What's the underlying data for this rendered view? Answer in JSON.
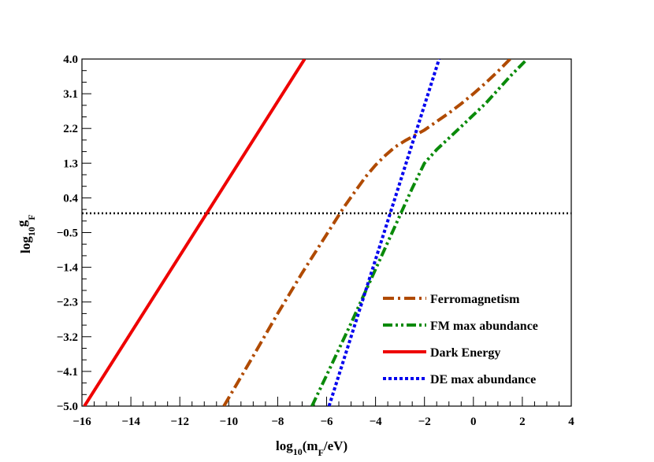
{
  "chart_data": {
    "type": "line",
    "xlim": [
      -16,
      4
    ],
    "ylim": [
      -5.0,
      4.0
    ],
    "x_ticks": [
      "−16",
      "−14",
      "−12",
      "−10",
      "−8",
      "−6",
      "−4",
      "−2",
      "0",
      "2",
      "4"
    ],
    "y_ticks": [
      "4.0",
      "3.1",
      "2.2",
      "1.3",
      "0.4",
      "−0.5",
      "−1.4",
      "−2.3",
      "−3.2",
      "−4.1",
      "−5.0"
    ],
    "x_tick_values": [
      -16,
      -14,
      -12,
      -10,
      -8,
      -6,
      -4,
      -2,
      0,
      2,
      4
    ],
    "y_tick_values": [
      4.0,
      3.1,
      2.2,
      1.3,
      0.4,
      -0.5,
      -1.4,
      -2.3,
      -3.2,
      -4.1,
      -5.0
    ],
    "xlabel": {
      "main1": "log",
      "sub": "10",
      "main2": "(m",
      "sub2": "F",
      "main3": "/eV)"
    },
    "ylabel": {
      "main1": "log",
      "sub": "10",
      "main2": "g",
      "sub2": "F"
    },
    "reference_line": {
      "y": 0.0,
      "style": "dotted",
      "color": "#000000"
    },
    "legend_position": "bottom-right",
    "grid": false,
    "series": [
      {
        "name": "Ferromagnetism",
        "color": "#b04a00",
        "dash": "dash-dot",
        "x": [
          -10.2,
          -9.0,
          -8.0,
          -7.0,
          -6.0,
          -5.3,
          -4.8,
          -4.4,
          -4.0,
          -3.6,
          -3.2,
          -2.8,
          -2.4,
          -2.0,
          -1.5,
          -1.0,
          -0.5,
          0.0,
          0.5,
          1.0,
          1.5
        ],
        "y": [
          -5.0,
          -3.7,
          -2.6,
          -1.55,
          -0.55,
          0.15,
          0.6,
          0.95,
          1.25,
          1.5,
          1.72,
          1.88,
          2.02,
          2.16,
          2.38,
          2.6,
          2.84,
          3.1,
          3.38,
          3.68,
          4.0
        ]
      },
      {
        "name": "FM max abundance",
        "color": "#0a8a0a",
        "dash": "dash-dot-dot",
        "x": [
          -6.6,
          -6.0,
          -5.0,
          -4.0,
          -3.0,
          -2.5,
          -2.0,
          -1.5,
          -1.0,
          -0.5,
          0.0,
          0.5,
          1.0,
          1.5,
          2.2
        ],
        "y": [
          -5.0,
          -4.2,
          -2.85,
          -1.45,
          -0.05,
          0.65,
          1.3,
          1.65,
          1.95,
          2.25,
          2.55,
          2.85,
          3.2,
          3.55,
          4.0
        ]
      },
      {
        "name": "Dark Energy",
        "color": "#ee0000",
        "dash": "solid",
        "x": [
          -15.9,
          -6.9
        ],
        "y": [
          -5.0,
          4.0
        ]
      },
      {
        "name": "DE max abundance",
        "color": "#0000ee",
        "dash": "dotted",
        "x": [
          -5.9,
          -1.4
        ],
        "y": [
          -5.0,
          4.0
        ]
      }
    ]
  }
}
